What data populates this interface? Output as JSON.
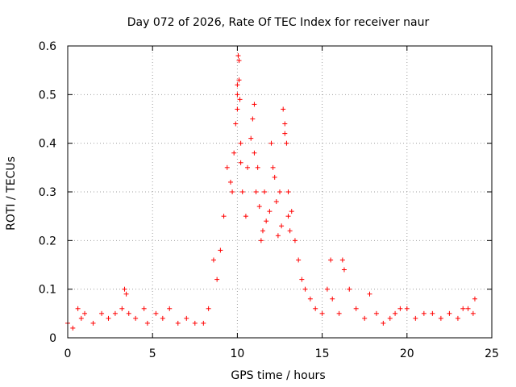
{
  "chart_data": {
    "type": "scatter",
    "title": "Day 072 of 2026, Rate Of TEC Index for receiver naur",
    "xlabel": "GPS time / hours",
    "ylabel": "ROTI / TECUs",
    "xlim": [
      0,
      25
    ],
    "ylim": [
      0,
      0.6
    ],
    "xticks": [
      0,
      5,
      10,
      15,
      20,
      25
    ],
    "yticks": [
      0,
      0.1,
      0.2,
      0.3,
      0.4,
      0.5,
      0.6
    ],
    "xtick_labels": [
      "0",
      "5",
      "10",
      "15",
      "20",
      "25"
    ],
    "ytick_labels": [
      "0",
      "0.1",
      "0.2",
      "0.3",
      "0.4",
      "0.5",
      "0.6"
    ],
    "grid": true,
    "marker": "+",
    "color": "#ff0000",
    "series": [
      {
        "name": "ROTI",
        "x": [
          0.0,
          0.3,
          0.6,
          0.8,
          1.0,
          1.5,
          2.0,
          2.4,
          2.8,
          3.2,
          3.35,
          3.45,
          3.6,
          4.0,
          4.5,
          4.7,
          5.2,
          5.6,
          6.0,
          6.5,
          7.0,
          7.5,
          8.0,
          8.3,
          8.6,
          8.8,
          9.0,
          9.2,
          9.4,
          9.6,
          9.7,
          9.8,
          9.9,
          10.0,
          10.0,
          10.0,
          10.05,
          10.1,
          10.1,
          10.15,
          10.2,
          10.2,
          10.3,
          10.5,
          10.6,
          10.8,
          10.9,
          11.0,
          11.0,
          11.1,
          11.2,
          11.3,
          11.4,
          11.5,
          11.6,
          11.7,
          11.9,
          12.0,
          12.1,
          12.2,
          12.3,
          12.4,
          12.5,
          12.6,
          12.7,
          12.8,
          12.8,
          12.9,
          13.0,
          13.0,
          13.1,
          13.2,
          13.4,
          13.6,
          13.8,
          14.0,
          14.3,
          14.6,
          15.0,
          15.3,
          15.5,
          15.6,
          16.0,
          16.2,
          16.3,
          16.6,
          17.0,
          17.5,
          17.8,
          18.2,
          18.6,
          19.0,
          19.3,
          19.6,
          20.0,
          20.5,
          21.0,
          21.5,
          22.0,
          22.5,
          23.0,
          23.3,
          23.6,
          23.9,
          24.0
        ],
        "y": [
          0.03,
          0.02,
          0.06,
          0.04,
          0.05,
          0.03,
          0.05,
          0.04,
          0.05,
          0.06,
          0.1,
          0.09,
          0.05,
          0.04,
          0.06,
          0.03,
          0.05,
          0.04,
          0.06,
          0.03,
          0.04,
          0.03,
          0.03,
          0.06,
          0.16,
          0.12,
          0.18,
          0.25,
          0.35,
          0.32,
          0.3,
          0.38,
          0.44,
          0.5,
          0.47,
          0.52,
          0.58,
          0.57,
          0.53,
          0.49,
          0.4,
          0.36,
          0.3,
          0.25,
          0.35,
          0.41,
          0.45,
          0.48,
          0.38,
          0.3,
          0.35,
          0.27,
          0.2,
          0.22,
          0.3,
          0.24,
          0.26,
          0.4,
          0.35,
          0.33,
          0.28,
          0.21,
          0.3,
          0.23,
          0.47,
          0.44,
          0.42,
          0.4,
          0.3,
          0.25,
          0.22,
          0.26,
          0.2,
          0.16,
          0.12,
          0.1,
          0.08,
          0.06,
          0.05,
          0.1,
          0.16,
          0.08,
          0.05,
          0.16,
          0.14,
          0.1,
          0.06,
          0.04,
          0.09,
          0.05,
          0.03,
          0.04,
          0.05,
          0.06,
          0.06,
          0.04,
          0.05,
          0.05,
          0.04,
          0.05,
          0.04,
          0.06,
          0.06,
          0.05,
          0.08
        ]
      }
    ]
  }
}
